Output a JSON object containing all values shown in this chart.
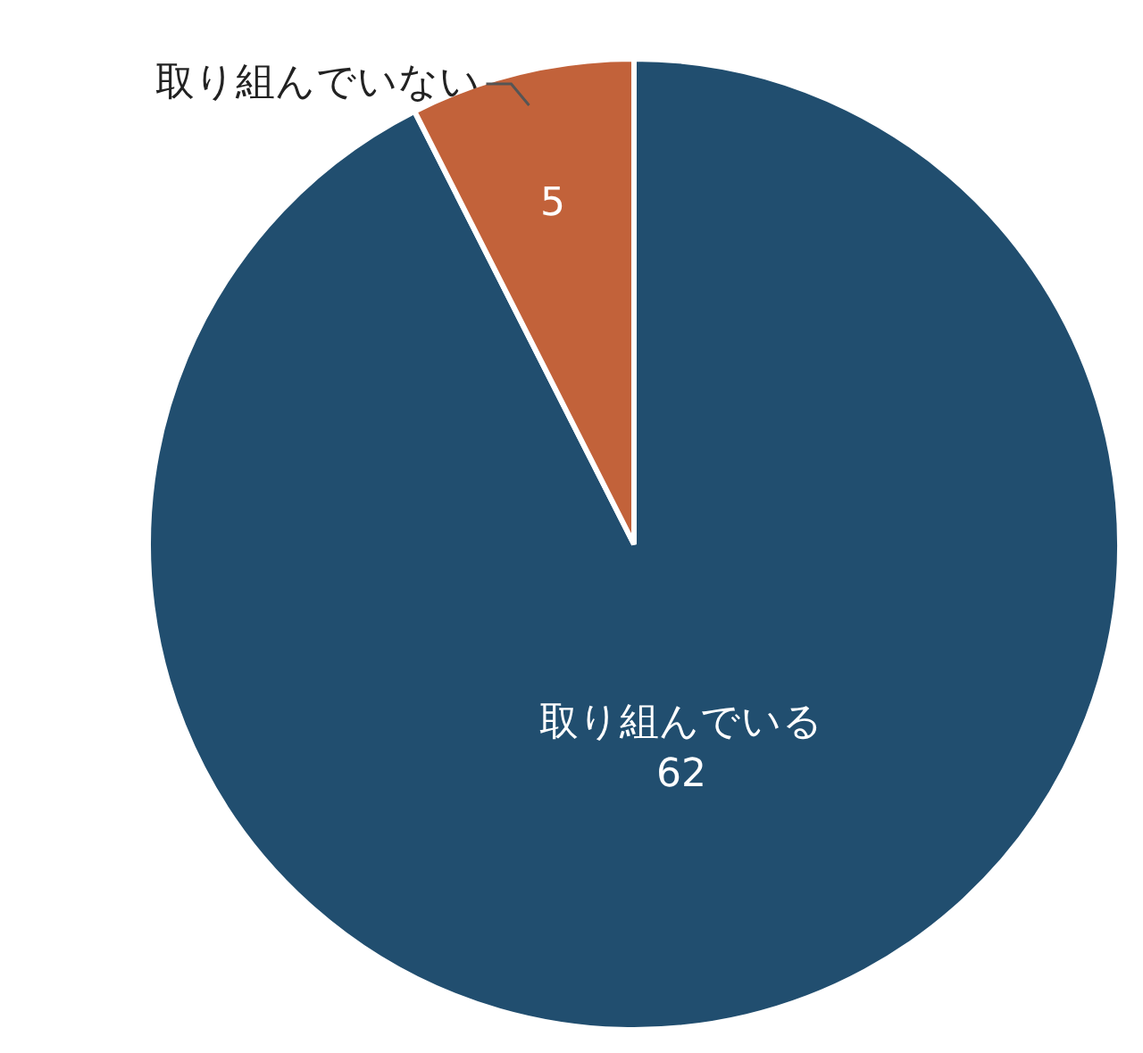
{
  "chart_data": {
    "type": "pie",
    "categories": [
      "取り組んでいる",
      "取り組んでいない"
    ],
    "values": [
      62,
      5
    ],
    "colors": [
      "#214e6f",
      "#c2623a"
    ],
    "data_labels": true
  }
}
